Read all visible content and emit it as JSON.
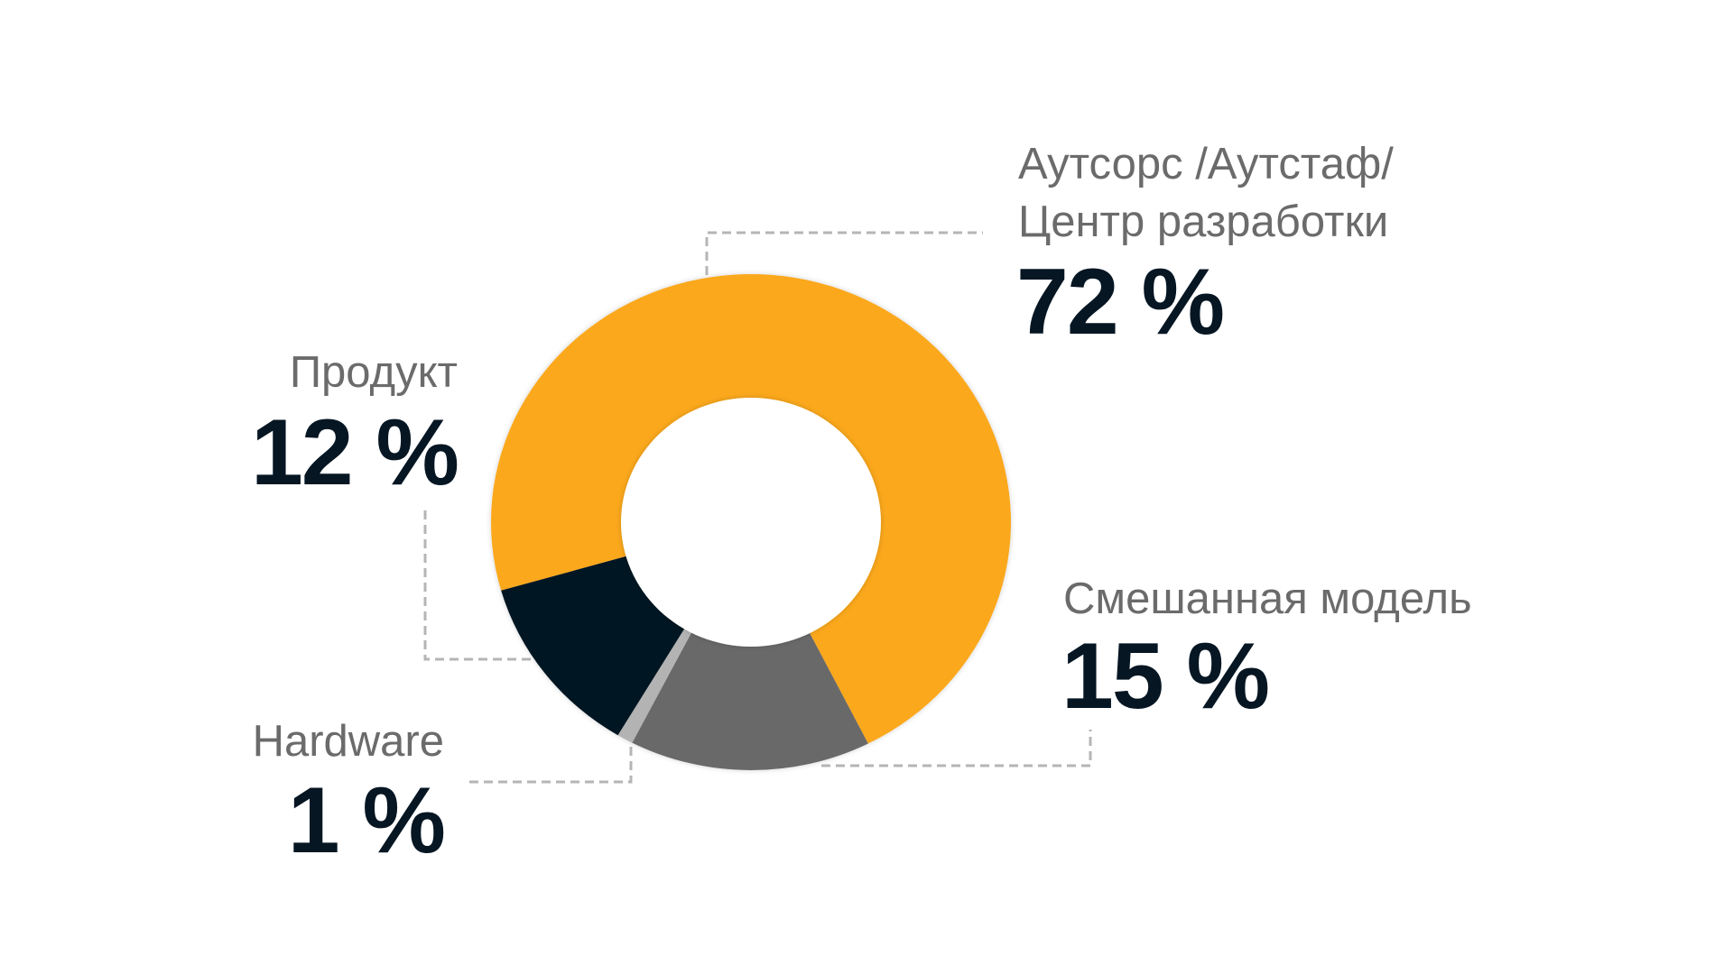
{
  "chart_data": {
    "type": "pie",
    "variant": "donut",
    "slices": [
      {
        "label_lines": [
          "Аутсорс /Аутстаф/",
          "Центр разработки"
        ],
        "value": 72,
        "value_label": "72 %",
        "color": "#FBA81D"
      },
      {
        "label_lines": [
          "Смешанная модель"
        ],
        "value": 15,
        "value_label": "15 %",
        "color": "#696969"
      },
      {
        "label_lines": [
          "Hardware"
        ],
        "value": 1,
        "value_label": "1 %",
        "color": "#B3B3B3"
      },
      {
        "label_lines": [
          "Продукт"
        ],
        "value": 12,
        "value_label": "12 %",
        "color": "#061623"
      }
    ],
    "legend": "none",
    "label_color": "#6B6B6B",
    "value_color": "#061623",
    "leader_line_color": "#B5B5B5"
  }
}
